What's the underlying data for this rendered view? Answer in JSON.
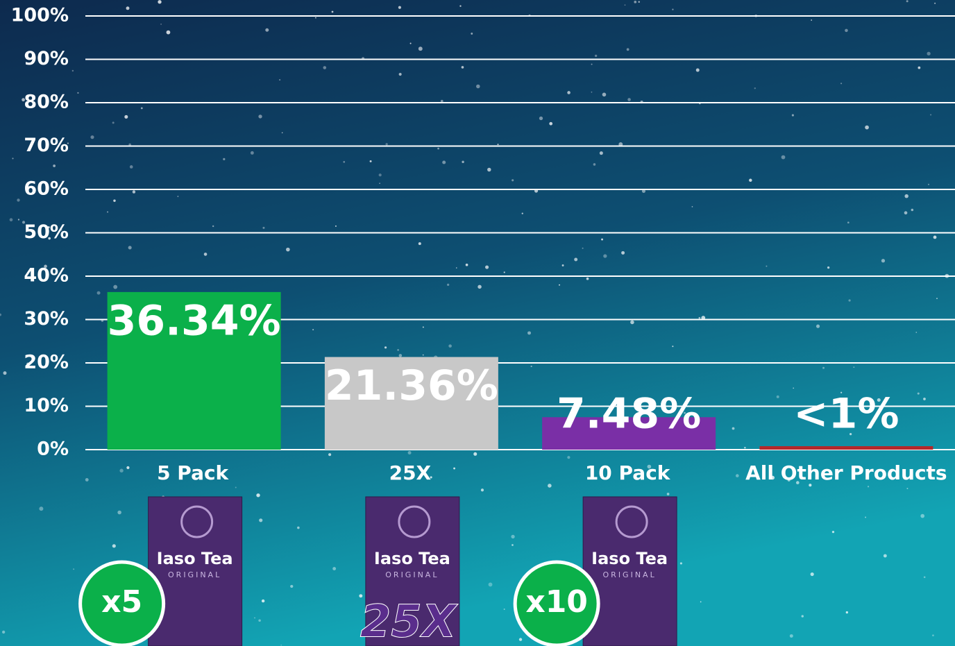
{
  "chart_data": {
    "type": "bar",
    "categories": [
      "5 Pack",
      "25X",
      "10 Pack",
      "All Other Products"
    ],
    "values": [
      36.34,
      21.36,
      7.48,
      0.8
    ],
    "value_labels": [
      "36.34%",
      "21.36%",
      "7.48%",
      "<1%"
    ],
    "colors": [
      "#0bb04a",
      "#c8c8c8",
      "#7a2fa6",
      "#b3282b"
    ],
    "ylim": [
      0,
      100
    ],
    "yticks": [
      {
        "value": 0,
        "label": "0%"
      },
      {
        "value": 10,
        "label": "10%"
      },
      {
        "value": 20,
        "label": "20%"
      },
      {
        "value": 30,
        "label": "30%"
      },
      {
        "value": 40,
        "label": "40%"
      },
      {
        "value": 50,
        "label": "50%"
      },
      {
        "value": 60,
        "label": "60%"
      },
      {
        "value": 70,
        "label": "70%"
      },
      {
        "value": 80,
        "label": "80%"
      },
      {
        "value": 90,
        "label": "90%"
      },
      {
        "value": 100,
        "label": "100%"
      }
    ],
    "grid": true
  },
  "products": [
    {
      "brand": "Iaso Tea",
      "line": "ORIGINAL",
      "badge": "x5"
    },
    {
      "brand": "Iaso Tea",
      "line": "ORIGINAL",
      "badge": "25X"
    },
    {
      "brand": "Iaso Tea",
      "line": "ORIGINAL",
      "badge": "x10"
    }
  ]
}
